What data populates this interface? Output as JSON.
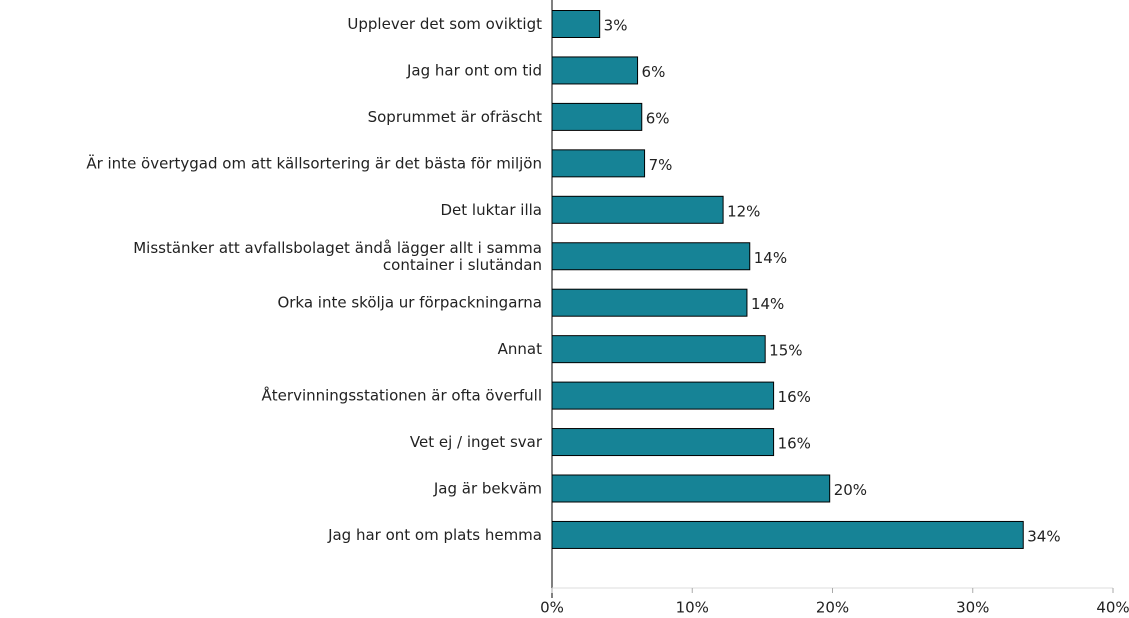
{
  "chart_data": {
    "type": "bar",
    "orientation": "horizontal",
    "categories": [
      "Upplever det som oviktigt",
      "Jag har ont om tid",
      "Soprummet är ofräscht",
      "Är inte övertygad om att källsortering är det bästa för miljön",
      "Det luktar illa",
      "Misstänker att avfallsbolaget ändå lägger allt i samma\ncontainer i slutändan",
      "Orka inte skölja ur förpackningarna",
      "Annat",
      "Återvinningsstationen är ofta överfull",
      "Vet ej / inget svar",
      "Jag är bekväm",
      "Jag har ont om plats hemma"
    ],
    "values": [
      3.4,
      6.1,
      6.4,
      6.6,
      12.2,
      14.1,
      13.9,
      15.2,
      15.8,
      15.8,
      19.8,
      33.6
    ],
    "value_labels": [
      "3%",
      "6%",
      "6%",
      "7%",
      "12%",
      "14%",
      "14%",
      "15%",
      "16%",
      "16%",
      "20%",
      "34%"
    ],
    "color": "#168396",
    "xlim": [
      0,
      40
    ],
    "xticks": [
      {
        "value": 0,
        "label": "0%"
      },
      {
        "value": 10,
        "label": "10%"
      },
      {
        "value": 20,
        "label": "20%"
      },
      {
        "value": 30,
        "label": "30%"
      },
      {
        "value": 40,
        "label": "40%"
      }
    ],
    "grid": false
  }
}
